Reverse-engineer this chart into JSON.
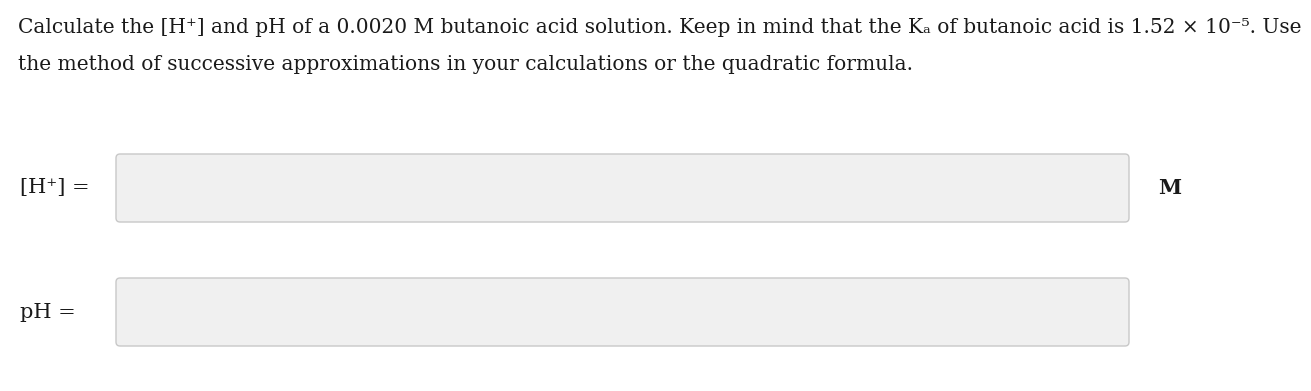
{
  "bg_color": "#ffffff",
  "text_color": "#1a1a1a",
  "box_color": "#f0f0f0",
  "box_edge_color": "#c8c8c8",
  "line1": "Calculate the [H⁺] and pH of a 0.0020 M butanoic acid solution. Keep in mind that the Kₐ of butanoic acid is 1.52 × 10⁻⁵. Use",
  "line2": "the method of successive approximations in your calculations or the quadratic formula.",
  "label1": "[H⁺] =",
  "label2": "pH =",
  "unit": "M",
  "text_fontsize": 14.5,
  "label_fontsize": 15
}
